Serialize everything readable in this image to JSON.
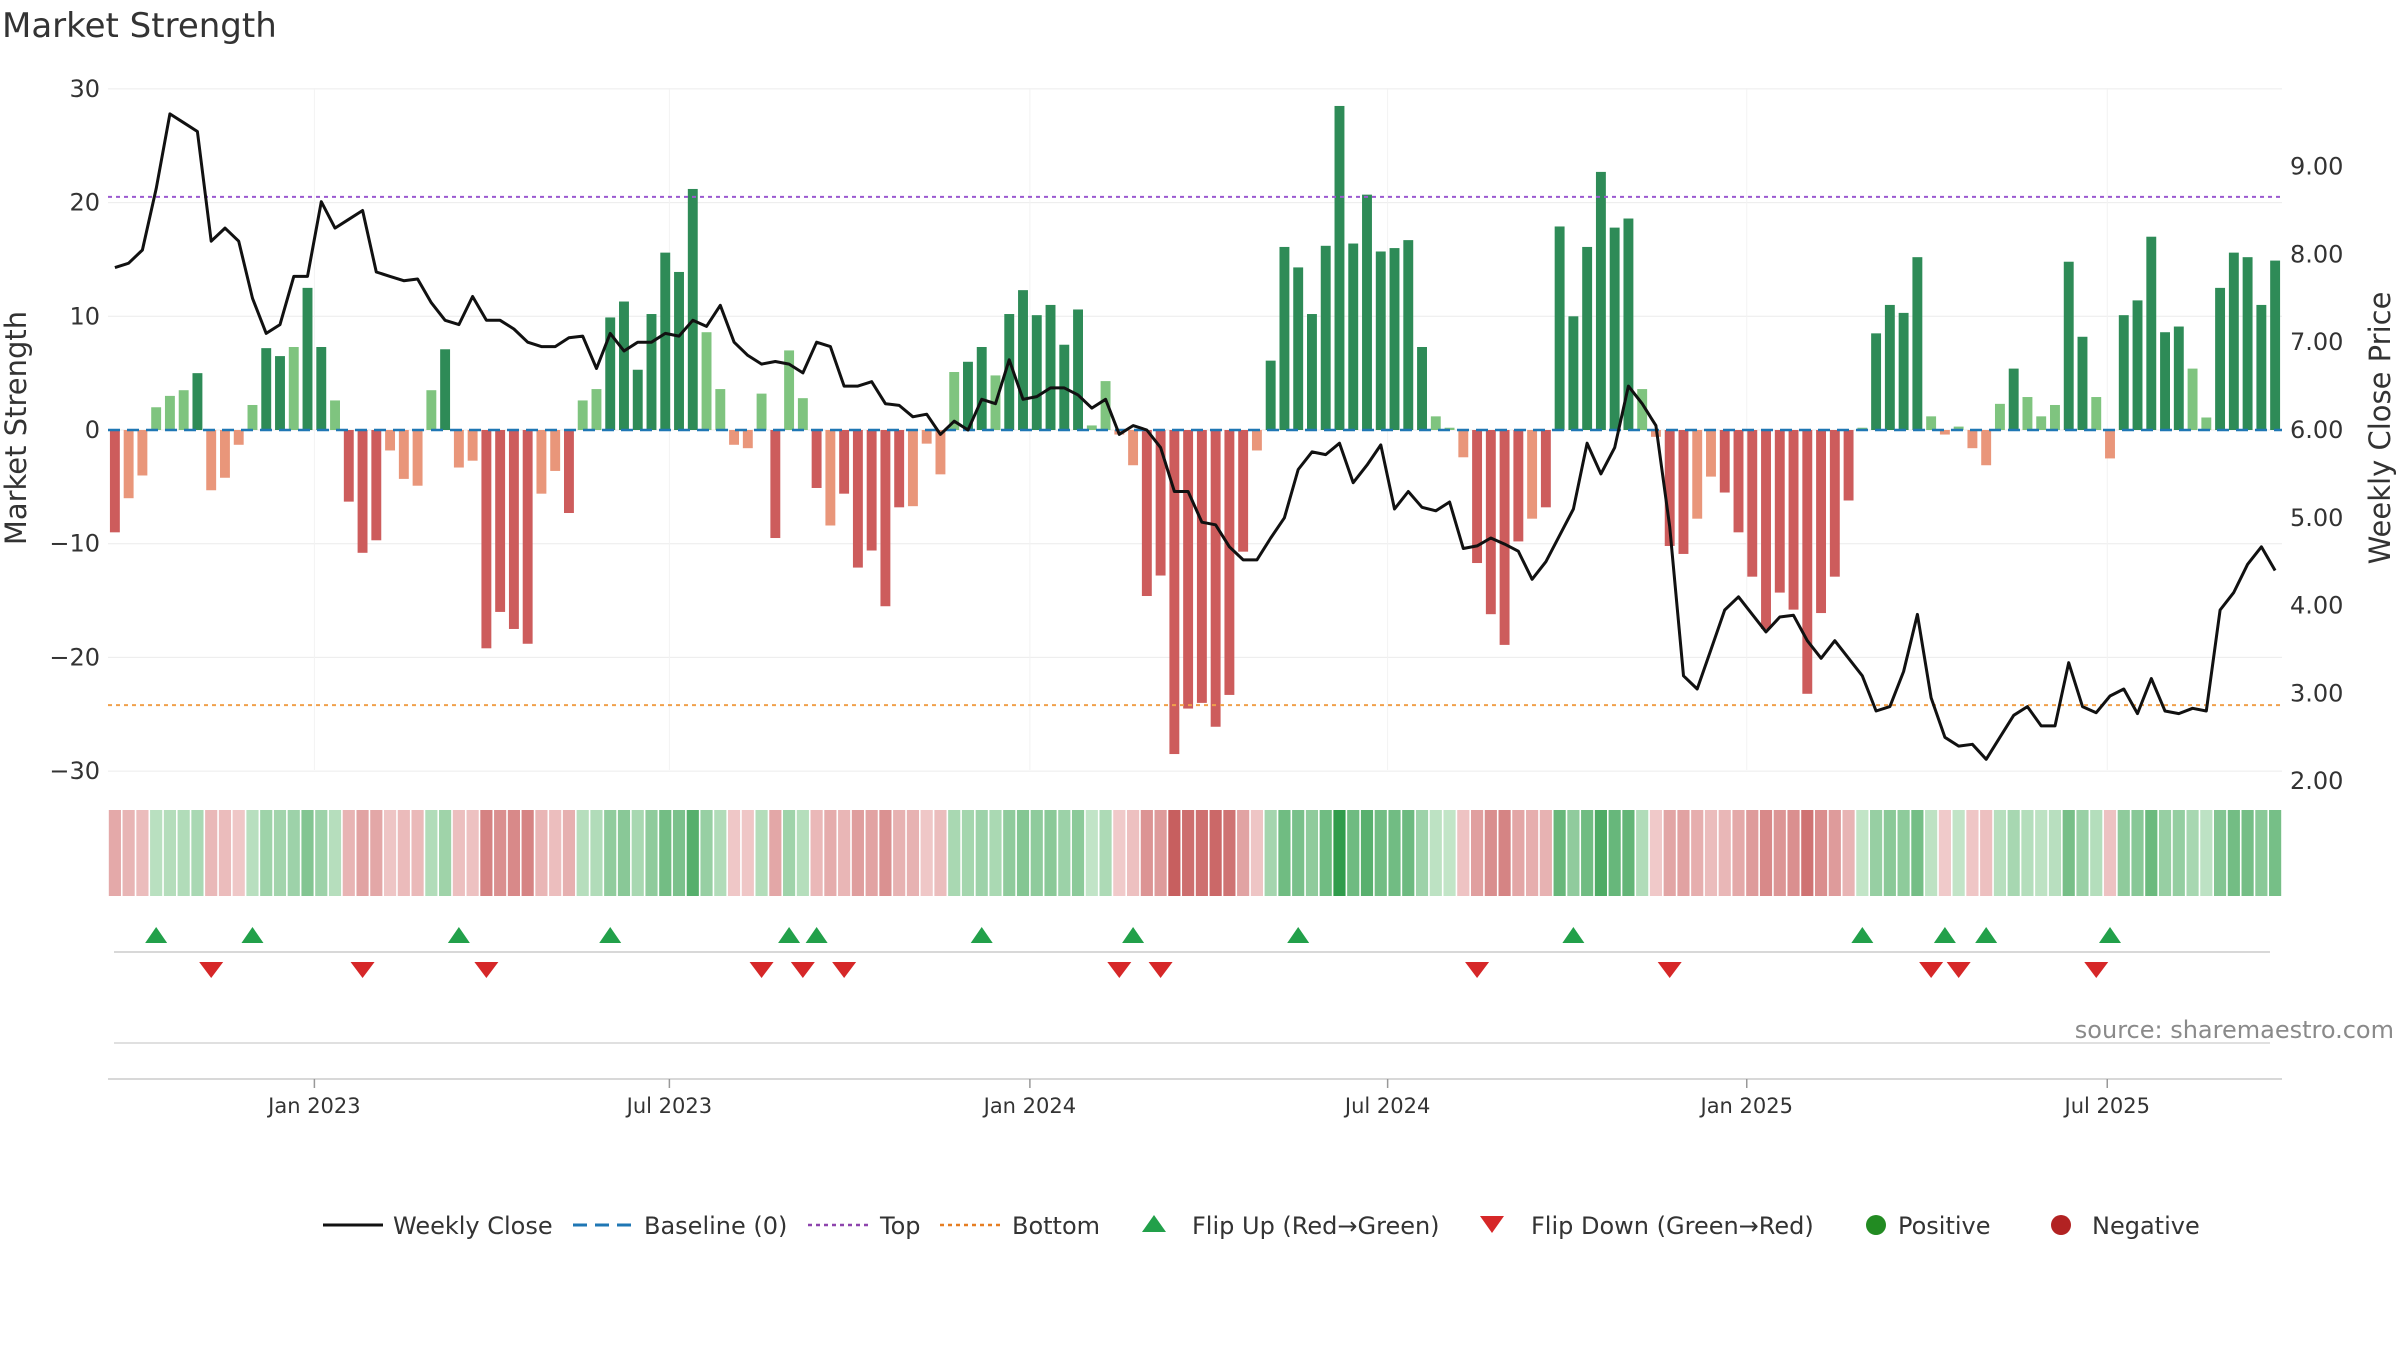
{
  "title": "Market Strength",
  "source": "source: sharemaestro.com",
  "chart_data": {
    "type": "bar+line",
    "title": "Market Strength",
    "ylabel_left": "Market Strength",
    "ylabel_right": "Weekly Close Price",
    "ylim_left": [
      -30,
      30
    ],
    "ylim_right": [
      1.75,
      9.8
    ],
    "left_ticks": [
      "30",
      "20",
      "10",
      "0",
      "−10",
      "−20",
      "−30"
    ],
    "left_tick_values": [
      30,
      20,
      10,
      0,
      -10,
      -20,
      -30
    ],
    "right_ticks": [
      "9.00",
      "8.00",
      "7.00",
      "6.00",
      "5.00",
      "4.00",
      "3.00",
      "2.00"
    ],
    "right_tick_values": [
      9,
      8,
      7,
      6,
      5,
      4,
      3,
      2
    ],
    "top_level": 20.5,
    "bottom_level": -24.2,
    "baseline": 0,
    "x_ticks": [
      "Jan 2023",
      "Jul 2023",
      "Jan 2024",
      "Jul 2024",
      "Jan 2025",
      "Jul 2025"
    ],
    "x_tick_weeks": [
      14.5,
      40.3,
      66.5,
      92.5,
      118.6,
      144.8
    ],
    "strength": [
      -9,
      -6,
      -4,
      2,
      3,
      3.5,
      5,
      -5.3,
      -4.2,
      -1.3,
      2.2,
      7.2,
      6.5,
      7.3,
      12.5,
      7.3,
      2.6,
      -6.3,
      -10.8,
      -9.7,
      -1.8,
      -4.3,
      -4.9,
      3.5,
      7.1,
      -3.3,
      -2.7,
      -19.2,
      -16,
      -17.5,
      -18.8,
      -5.6,
      -3.6,
      -7.3,
      2.6,
      3.6,
      9.9,
      11.3,
      5.3,
      10.2,
      15.6,
      13.9,
      21.2,
      8.6,
      3.6,
      -1.3,
      -1.6,
      3.2,
      -9.5,
      7,
      2.8,
      -5.1,
      -8.4,
      -5.6,
      -12.1,
      -10.6,
      -15.5,
      -6.8,
      -6.7,
      -1.2,
      -3.9,
      5.1,
      6,
      7.3,
      4.8,
      10.2,
      12.3,
      10.1,
      11,
      7.5,
      10.6,
      0.4,
      4.3,
      -0.4,
      -3.1,
      -14.6,
      -12.8,
      -28.5,
      -24.5,
      -24,
      -26.1,
      -23.3,
      -10.7,
      -1.8,
      6.1,
      16.1,
      14.3,
      10.2,
      16.2,
      28.5,
      16.4,
      20.7,
      15.7,
      16,
      16.7,
      7.3,
      1.2,
      0.2,
      -2.4,
      -11.7,
      -16.2,
      -18.9,
      -9.8,
      -7.8,
      -6.8,
      17.9,
      10,
      16.1,
      22.7,
      17.8,
      18.6,
      3.6,
      -0.6,
      -10.2,
      -10.9,
      -7.8,
      -4.1,
      -5.5,
      -9,
      -12.9,
      -17.5,
      -14.3,
      -15.8,
      -23.2,
      -16.1,
      -12.9,
      -6.2,
      0.2,
      8.5,
      11,
      10.3,
      15.2,
      1.2,
      -0.4,
      0.3,
      -1.6,
      -3.1,
      2.3,
      5.4,
      2.9,
      1.2,
      2.2,
      14.8,
      8.2,
      2.9,
      -2.5,
      10.1,
      11.4,
      17,
      8.6,
      9.1,
      5.4,
      1.1,
      12.5,
      15.6,
      15.2,
      11,
      14.9
    ],
    "weekly_close": [
      7.85,
      7.9,
      8.05,
      8.75,
      9.6,
      9.5,
      9.4,
      8.15,
      8.3,
      8.15,
      7.5,
      7.1,
      7.2,
      7.75,
      7.75,
      8.6,
      8.3,
      8.4,
      8.5,
      7.8,
      7.75,
      7.7,
      7.72,
      7.45,
      7.25,
      7.2,
      7.52,
      7.25,
      7.25,
      7.15,
      7.0,
      6.95,
      6.95,
      7.05,
      7.07,
      6.7,
      7.1,
      6.9,
      7.0,
      7.0,
      7.1,
      7.07,
      7.25,
      7.18,
      7.42,
      7.0,
      6.85,
      6.75,
      6.78,
      6.75,
      6.65,
      7.0,
      6.95,
      6.5,
      6.5,
      6.55,
      6.3,
      6.28,
      6.15,
      6.18,
      5.95,
      6.1,
      6.0,
      6.35,
      6.3,
      6.8,
      6.35,
      6.38,
      6.48,
      6.48,
      6.4,
      6.25,
      6.35,
      5.95,
      6.05,
      6.0,
      5.8,
      5.3,
      5.3,
      4.95,
      4.92,
      4.67,
      4.52,
      4.52,
      4.77,
      5.0,
      5.55,
      5.75,
      5.72,
      5.85,
      5.4,
      5.6,
      5.83,
      5.1,
      5.3,
      5.12,
      5.08,
      5.18,
      4.65,
      4.68,
      4.77,
      4.7,
      4.62,
      4.3,
      4.5,
      4.8,
      5.1,
      5.85,
      5.5,
      5.8,
      6.5,
      6.3,
      6.05,
      4.9,
      3.2,
      3.05,
      3.5,
      3.95,
      4.1,
      3.9,
      3.7,
      3.87,
      3.89,
      3.6,
      3.4,
      3.6,
      3.4,
      3.2,
      2.8,
      2.85,
      3.25,
      3.9,
      2.95,
      2.5,
      2.4,
      2.42,
      2.25,
      2.5,
      2.75,
      2.85,
      2.63,
      2.63,
      3.35,
      2.85,
      2.78,
      2.97,
      3.05,
      2.77,
      3.17,
      2.8,
      2.77,
      2.83,
      2.8,
      3.95,
      4.15,
      4.47,
      4.67,
      4.4
    ],
    "flip_up_weeks": [
      3,
      10,
      25,
      36,
      49,
      51,
      63,
      74,
      86,
      106,
      127,
      133,
      136,
      145
    ],
    "flip_down_weeks": [
      7,
      18,
      27,
      47,
      50,
      53,
      73,
      76,
      99,
      113,
      132,
      134,
      144
    ],
    "series_names": [
      "Market Strength",
      "Weekly Close"
    ]
  },
  "legend": [
    {
      "label": "Weekly Close",
      "kind": "line-solid",
      "color": "#111111"
    },
    {
      "label": "Baseline (0)",
      "kind": "line-dash",
      "color": "#1f77b4"
    },
    {
      "label": "Top",
      "kind": "line-dot",
      "color": "#8e44ad"
    },
    {
      "label": "Bottom",
      "kind": "line-dot",
      "color": "#e67e22"
    },
    {
      "label": "Flip Up (Red→Green)",
      "kind": "tri-up",
      "color": "#22a04a"
    },
    {
      "label": "Flip Down (Green→Red)",
      "kind": "tri-down",
      "color": "#d62728"
    },
    {
      "label": "Positive",
      "kind": "dot",
      "color": "#228b22"
    },
    {
      "label": "Negative",
      "kind": "dot",
      "color": "#b22222"
    }
  ],
  "colors": {
    "pos_strong": "#2e8b57",
    "pos_weak": "#7fc47f",
    "neg_strong": "#cd5c5c",
    "neg_weak": "#e9967a",
    "top": "#9b59d0",
    "bottom": "#f0a04b",
    "baseline": "#1f77b4",
    "close": "#111111",
    "flip_up": "#22a04a",
    "flip_down": "#d62728"
  }
}
